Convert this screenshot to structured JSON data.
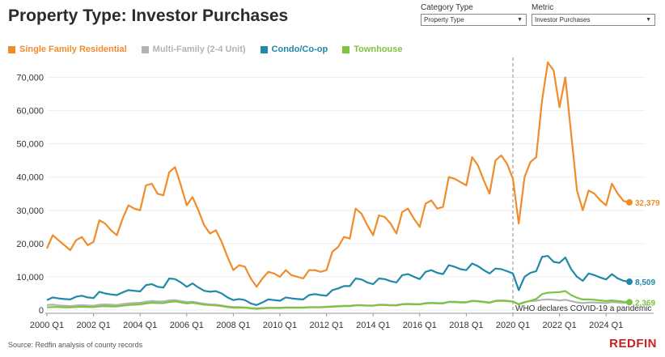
{
  "header": {
    "title": "Property Type: Investor Purchases"
  },
  "controls": {
    "category": {
      "label": "Category Type",
      "value": "Property Type"
    },
    "metric": {
      "label": "Metric",
      "value": "Investor Purchases"
    }
  },
  "footer": {
    "source": "Source: Redfin analysis of county records",
    "logo": "REDFIN"
  },
  "colors": {
    "sfr": "#f08c2c",
    "multi": "#b3b3b3",
    "condo": "#1f89a8",
    "town": "#7fc241"
  },
  "chart_data": {
    "type": "line",
    "title": "Property Type: Investor Purchases",
    "xlabel": "",
    "ylabel": "",
    "ylim": [
      0,
      75000
    ],
    "y_ticks": [
      0,
      10000,
      20000,
      30000,
      40000,
      50000,
      60000,
      70000
    ],
    "y_tick_labels": [
      "0",
      "10,000",
      "20,000",
      "30,000",
      "40,000",
      "50,000",
      "60,000",
      "70,000"
    ],
    "x_start": "2000 Q1",
    "x_tick_labels": [
      "2000 Q1",
      "2002 Q1",
      "2004 Q1",
      "2006 Q1",
      "2008 Q1",
      "2010 Q1",
      "2012 Q1",
      "2014 Q1",
      "2016 Q1",
      "2018 Q1",
      "2020 Q1",
      "2022 Q1",
      "2024 Q1"
    ],
    "annotation": {
      "label": "WHO declares COVID-19 a pandemic",
      "quarter_index": 80
    },
    "series": [
      {
        "name": "Single Family Residential",
        "color_key": "sfr",
        "end_label": "32,379",
        "values": [
          18500,
          22500,
          21000,
          19500,
          18000,
          21000,
          22000,
          19500,
          20500,
          27000,
          26000,
          24000,
          22500,
          27500,
          31500,
          30500,
          30000,
          37500,
          38000,
          35000,
          34500,
          41500,
          43000,
          37500,
          31500,
          34000,
          30000,
          25500,
          23000,
          24000,
          20500,
          16000,
          12000,
          13500,
          13000,
          9500,
          7000,
          9500,
          11500,
          11000,
          10000,
          12000,
          10500,
          10000,
          9500,
          12000,
          12000,
          11500,
          12000,
          17500,
          19000,
          22000,
          21500,
          30500,
          29000,
          25500,
          22500,
          28500,
          28000,
          26000,
          23000,
          29500,
          30500,
          27500,
          25000,
          32000,
          33000,
          30500,
          31000,
          40000,
          39500,
          38500,
          37500,
          46000,
          43500,
          39000,
          35000,
          45000,
          46500,
          44000,
          39500,
          26000,
          40000,
          44500,
          46000,
          63000,
          74500,
          72000,
          61000,
          70000,
          53000,
          36000,
          30000,
          36000,
          35000,
          33000,
          31500,
          38000,
          35000,
          32800,
          32379
        ]
      },
      {
        "name": "Multi-Family (2-4 Unit)",
        "color_key": "multi",
        "end_label": "",
        "values": [
          1500,
          1600,
          1400,
          1300,
          1200,
          1400,
          1500,
          1400,
          1300,
          1600,
          1700,
          1600,
          1500,
          1800,
          2000,
          2100,
          2200,
          2500,
          2700,
          2600,
          2600,
          2900,
          3000,
          2700,
          2400,
          2500,
          2200,
          1900,
          1700,
          1600,
          1400,
          1100,
          900,
          900,
          800,
          600,
          500,
          600,
          700,
          700,
          700,
          800,
          800,
          800,
          800,
          900,
          900,
          900,
          1000,
          1100,
          1200,
          1300,
          1300,
          1500,
          1500,
          1400,
          1400,
          1600,
          1600,
          1500,
          1500,
          1800,
          1900,
          1800,
          1800,
          2100,
          2200,
          2100,
          2100,
          2500,
          2500,
          2400,
          2400,
          2800,
          2700,
          2500,
          2300,
          2800,
          2900,
          2800,
          2600,
          1800,
          2400,
          2700,
          2800,
          3100,
          3200,
          3100,
          2900,
          3100,
          2700,
          2300,
          2100,
          2300,
          2300,
          2200,
          2100,
          2400,
          2300,
          2200,
          2200
        ]
      },
      {
        "name": "Condo/Co-op",
        "color_key": "condo",
        "end_label": "8,509",
        "values": [
          3000,
          3800,
          3500,
          3300,
          3200,
          4000,
          4300,
          3800,
          3600,
          5500,
          5000,
          4700,
          4500,
          5300,
          6000,
          5800,
          5600,
          7500,
          7800,
          7000,
          6800,
          9500,
          9300,
          8300,
          7000,
          8000,
          6800,
          5800,
          5500,
          5700,
          5000,
          3800,
          3000,
          3300,
          3000,
          2000,
          1500,
          2300,
          3200,
          3000,
          2800,
          3800,
          3500,
          3300,
          3200,
          4500,
          4800,
          4500,
          4300,
          6000,
          6500,
          7200,
          7200,
          9500,
          9200,
          8300,
          7800,
          9500,
          9300,
          8700,
          8300,
          10500,
          10800,
          10000,
          9300,
          11500,
          12000,
          11200,
          10800,
          13500,
          13000,
          12300,
          12000,
          14000,
          13200,
          12000,
          11000,
          12500,
          12300,
          11700,
          11000,
          6000,
          10000,
          11200,
          11700,
          16000,
          16300,
          14500,
          14200,
          15800,
          12300,
          10000,
          8800,
          11000,
          10500,
          9800,
          9200,
          10800,
          9500,
          8800,
          8509
        ]
      },
      {
        "name": "Townhouse",
        "color_key": "town",
        "end_label": "2,369",
        "values": [
          800,
          900,
          900,
          800,
          800,
          900,
          1000,
          900,
          900,
          1100,
          1200,
          1100,
          1100,
          1300,
          1500,
          1600,
          1700,
          2000,
          2200,
          2100,
          2100,
          2400,
          2600,
          2300,
          2000,
          2200,
          1900,
          1600,
          1500,
          1400,
          1200,
          900,
          700,
          700,
          700,
          500,
          400,
          500,
          600,
          600,
          600,
          700,
          700,
          700,
          700,
          800,
          800,
          800,
          900,
          1000,
          1100,
          1200,
          1200,
          1400,
          1400,
          1300,
          1300,
          1500,
          1500,
          1400,
          1400,
          1700,
          1800,
          1700,
          1700,
          2000,
          2100,
          2000,
          2000,
          2400,
          2400,
          2300,
          2300,
          2700,
          2600,
          2400,
          2200,
          2700,
          2800,
          2700,
          2500,
          1700,
          2300,
          2800,
          3300,
          4800,
          5200,
          5300,
          5400,
          5700,
          4500,
          3700,
          3200,
          3200,
          3100,
          2900,
          2700,
          2900,
          2700,
          2500,
          2369
        ]
      }
    ]
  }
}
